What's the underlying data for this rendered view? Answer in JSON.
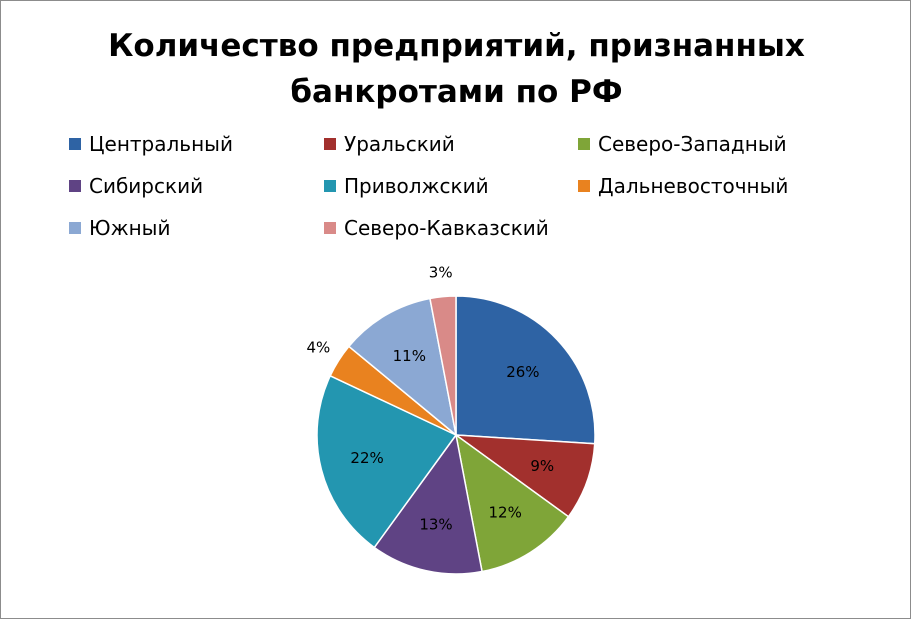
{
  "chart_data": {
    "type": "pie",
    "title": [
      "Количество предприятий, признанных",
      "банкротами по РФ"
    ],
    "legend_position": "top",
    "slices": [
      {
        "label": "Центральный",
        "value": 26,
        "display": "26%",
        "color": "#2e63a4"
      },
      {
        "label": "Уральский",
        "value": 9,
        "display": "9%",
        "color": "#a2302d"
      },
      {
        "label": "Северо-Западный",
        "value": 12,
        "display": "12%",
        "color": "#7fa538"
      },
      {
        "label": "Сибирский",
        "value": 13,
        "display": "13%",
        "color": "#5f4384"
      },
      {
        "label": "Приволжский",
        "value": 22,
        "display": "22%",
        "color": "#2396b0"
      },
      {
        "label": "Дальневосточный",
        "value": 4,
        "display": "4%",
        "color": "#e9821f"
      },
      {
        "label": "Южный",
        "value": 11,
        "display": "11%",
        "color": "#8ba8d3"
      },
      {
        "label": "Северо-Кавказский",
        "value": 3,
        "display": "3%",
        "color": "#d98a88"
      }
    ]
  }
}
